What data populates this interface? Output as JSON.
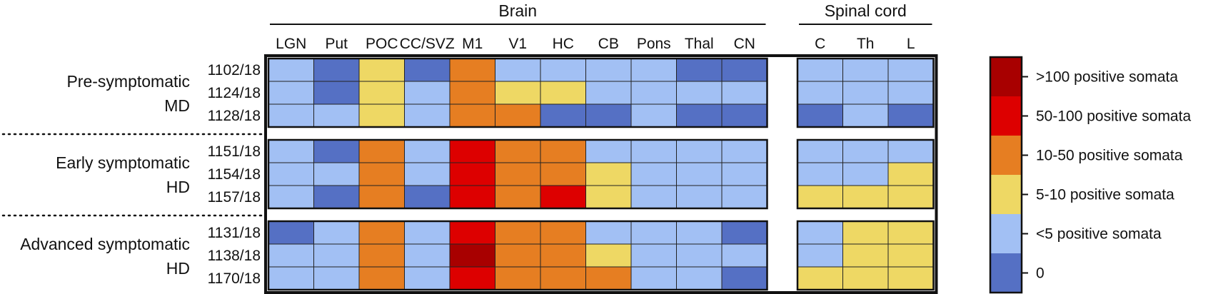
{
  "chart_data": {
    "type": "heatmap",
    "title": "",
    "groups": [
      {
        "label": "Brain",
        "columns": [
          "LGN",
          "Put",
          "POC",
          "CC/SVZ",
          "M1",
          "V1",
          "HC",
          "CB",
          "Pons",
          "Thal",
          "CN"
        ]
      },
      {
        "label": "Spinal cord",
        "columns": [
          "C",
          "Th",
          "L"
        ]
      }
    ],
    "row_groups": [
      {
        "label_lines": [
          "Pre-symptomatic",
          "MD"
        ],
        "rows": [
          {
            "id": "1102/18",
            "values": [
              1,
              0,
              2,
              0,
              3,
              1,
              1,
              1,
              1,
              0,
              0,
              1,
              1,
              1
            ]
          },
          {
            "id": "1124/18",
            "values": [
              1,
              0,
              2,
              1,
              3,
              2,
              2,
              1,
              1,
              1,
              1,
              1,
              1,
              1
            ]
          },
          {
            "id": "1128/18",
            "values": [
              1,
              1,
              2,
              1,
              3,
              3,
              0,
              0,
              1,
              0,
              0,
              0,
              1,
              0
            ]
          }
        ]
      },
      {
        "label_lines": [
          "Early symptomatic",
          "HD"
        ],
        "rows": [
          {
            "id": "1151/18",
            "values": [
              1,
              0,
              3,
              1,
              4,
              3,
              3,
              1,
              1,
              1,
              1,
              1,
              1,
              1
            ]
          },
          {
            "id": "1154/18",
            "values": [
              1,
              1,
              3,
              1,
              4,
              3,
              3,
              2,
              1,
              1,
              1,
              1,
              1,
              2
            ]
          },
          {
            "id": "1157/18",
            "values": [
              1,
              0,
              3,
              0,
              4,
              3,
              4,
              2,
              1,
              1,
              1,
              2,
              2,
              2
            ]
          }
        ]
      },
      {
        "label_lines": [
          "Advanced symptomatic",
          "HD"
        ],
        "rows": [
          {
            "id": "1131/18",
            "values": [
              0,
              1,
              3,
              1,
              4,
              3,
              3,
              1,
              1,
              1,
              0,
              1,
              2,
              2
            ]
          },
          {
            "id": "1138/18",
            "values": [
              1,
              1,
              3,
              1,
              5,
              3,
              3,
              2,
              1,
              1,
              1,
              1,
              2,
              2
            ]
          },
          {
            "id": "1170/18",
            "values": [
              1,
              1,
              3,
              1,
              4,
              3,
              3,
              3,
              1,
              1,
              0,
              2,
              2,
              2
            ]
          }
        ]
      }
    ],
    "legend": {
      "placement": "right",
      "levels": [
        {
          "value": 5,
          "label": ">100 positive somata",
          "color": "#a80000"
        },
        {
          "value": 4,
          "label": "50-100 positive somata",
          "color": "#dd0000"
        },
        {
          "value": 3,
          "label": "10-50 positive somata",
          "color": "#e67e22"
        },
        {
          "value": 2,
          "label": "5-10 positive somata",
          "color": "#eed864"
        },
        {
          "value": 1,
          "label": "<5 positive somata",
          "color": "#a2c0f4"
        },
        {
          "value": 0,
          "label": "0",
          "color": "#5570c4"
        }
      ]
    }
  }
}
